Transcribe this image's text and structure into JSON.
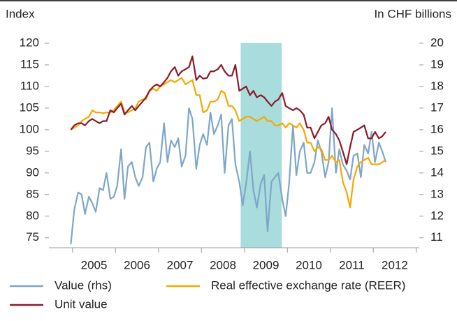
{
  "chart_data": {
    "type": "line",
    "y_label": "Index",
    "y2_label": "In CHF billions",
    "x": [
      2004.96,
      2005.04,
      2005.13,
      2005.21,
      2005.29,
      2005.38,
      2005.46,
      2005.54,
      2005.63,
      2005.71,
      2005.79,
      2005.88,
      2005.96,
      2006.04,
      2006.13,
      2006.21,
      2006.29,
      2006.38,
      2006.46,
      2006.54,
      2006.63,
      2006.71,
      2006.79,
      2006.88,
      2006.96,
      2007.04,
      2007.13,
      2007.21,
      2007.29,
      2007.38,
      2007.46,
      2007.54,
      2007.63,
      2007.71,
      2007.79,
      2007.88,
      2007.96,
      2008.04,
      2008.13,
      2008.21,
      2008.29,
      2008.38,
      2008.46,
      2008.54,
      2008.63,
      2008.71,
      2008.79,
      2008.88,
      2008.96,
      2009.04,
      2009.13,
      2009.21,
      2009.29,
      2009.38,
      2009.46,
      2009.54,
      2009.63,
      2009.71,
      2009.79,
      2009.88,
      2009.96,
      2010.04,
      2010.13,
      2010.21,
      2010.29,
      2010.38,
      2010.46,
      2010.54,
      2010.63,
      2010.71,
      2010.79,
      2010.88,
      2010.96,
      2011.04,
      2011.13,
      2011.21,
      2011.29,
      2011.38,
      2011.46,
      2011.54,
      2011.63,
      2011.71,
      2011.79,
      2011.88,
      2011.96,
      2012.04,
      2012.13,
      2012.21,
      2012.29
    ],
    "series": [
      {
        "name": "Value (rhs)",
        "color": "#7ea6c8",
        "axis": "y2",
        "values": [
          10.7,
          12.3,
          13.1,
          13.0,
          12.1,
          12.9,
          12.6,
          12.2,
          13.3,
          13.2,
          14.0,
          12.8,
          12.9,
          13.4,
          15.1,
          12.8,
          14.3,
          14.5,
          13.8,
          13.4,
          13.8,
          15.2,
          15.4,
          13.6,
          14.2,
          14.5,
          16.3,
          14.5,
          15.5,
          15.2,
          15.6,
          14.3,
          14.8,
          17.0,
          16.5,
          14.2,
          15.3,
          15.8,
          15.3,
          16.8,
          15.8,
          16.2,
          16.7,
          14.0,
          16.2,
          16.5,
          14.4,
          13.6,
          12.5,
          13.5,
          15.0,
          13.2,
          12.4,
          13.5,
          13.9,
          11.3,
          13.6,
          13.8,
          14.0,
          12.8,
          12.0,
          13.5,
          16.2,
          13.9,
          15.0,
          15.4,
          14.0,
          14.0,
          14.5,
          15.5,
          15.0,
          13.8,
          14.5,
          17.0,
          14.0,
          15.1,
          14.4,
          14.1,
          13.7,
          14.8,
          14.9,
          13.8,
          15.3,
          14.9,
          15.9,
          14.5,
          15.4,
          15.0,
          14.5
        ]
      },
      {
        "name": "Real effective exchange rate (REER)",
        "color": "#f5a800",
        "values": [
          100,
          100.5,
          101,
          102,
          102.5,
          103,
          104.5,
          104,
          104,
          103.8,
          104,
          104,
          104.5,
          105.5,
          106.5,
          104,
          104,
          104.5,
          105,
          106.5,
          107,
          107,
          109,
          109.5,
          109,
          110,
          110.5,
          111,
          111.5,
          111,
          111.5,
          112,
          110.5,
          111,
          111.5,
          108,
          108,
          104,
          104.5,
          106.5,
          106.5,
          107,
          109,
          108.5,
          105.5,
          105.5,
          104.5,
          102,
          102.5,
          103,
          103,
          102.5,
          102,
          102.5,
          103,
          102,
          102,
          101,
          101,
          101.5,
          100.5,
          101.5,
          101,
          100.5,
          101.5,
          100,
          97,
          97,
          95,
          96,
          95.5,
          93,
          93,
          94,
          92.5,
          93,
          88,
          85.5,
          82,
          88.5,
          91.5,
          92.5,
          93,
          93.5,
          92,
          92,
          92,
          92.5,
          93
        ]
      },
      {
        "name": "Unit value",
        "color": "#8b1a2a",
        "values": [
          100,
          101,
          101.5,
          101.5,
          101,
          102,
          102.5,
          102,
          101.5,
          102,
          102,
          104.5,
          104,
          105,
          106,
          103.5,
          104.5,
          105.5,
          104.5,
          105.5,
          106.5,
          107.5,
          109,
          110,
          110.5,
          110,
          111,
          112,
          113.5,
          114.5,
          112.5,
          113.5,
          114,
          114.5,
          117,
          111.5,
          112.5,
          111.8,
          112,
          113.5,
          113.5,
          114,
          115,
          113.5,
          112.5,
          112.5,
          115,
          109,
          109.5,
          110,
          108,
          109,
          107.5,
          108,
          107.5,
          106.5,
          105.5,
          106.5,
          107,
          108.5,
          105.5,
          105,
          104.5,
          105,
          104.5,
          103.5,
          100.5,
          100.5,
          98,
          99.5,
          101,
          101.5,
          103,
          100,
          99,
          97.5,
          95,
          92,
          96,
          99.5,
          100,
          100.5,
          101,
          98,
          98,
          99.5,
          98,
          98.5,
          99.5
        ]
      }
    ],
    "shaded_region": [
      2008.92,
      2009.86
    ],
    "shade_color": "#a9dcdc",
    "xlim": [
      2004.45,
      2013.07
    ],
    "xticks": [
      2005,
      2006,
      2007,
      2008,
      2009,
      2010,
      2011,
      2012,
      2013
    ],
    "x_labels": [
      {
        "value": 2005.5,
        "label": "2005"
      },
      {
        "value": 2006.5,
        "label": "2006"
      },
      {
        "value": 2007.5,
        "label": "2007"
      },
      {
        "value": 2008.5,
        "label": "2008"
      },
      {
        "value": 2009.5,
        "label": "2009"
      },
      {
        "value": 2010.5,
        "label": "2010"
      },
      {
        "value": 2011.5,
        "label": "2011"
      },
      {
        "value": 2012.5,
        "label": "2012"
      }
    ],
    "ylim": [
      72.7,
      120
    ],
    "yticks": [
      75,
      80,
      85,
      90,
      95,
      100,
      105,
      110,
      115,
      120
    ],
    "y2lim": [
      10.54,
      20
    ],
    "y2ticks": [
      11,
      12,
      13,
      14,
      15,
      16,
      17,
      18,
      19,
      20
    ]
  }
}
